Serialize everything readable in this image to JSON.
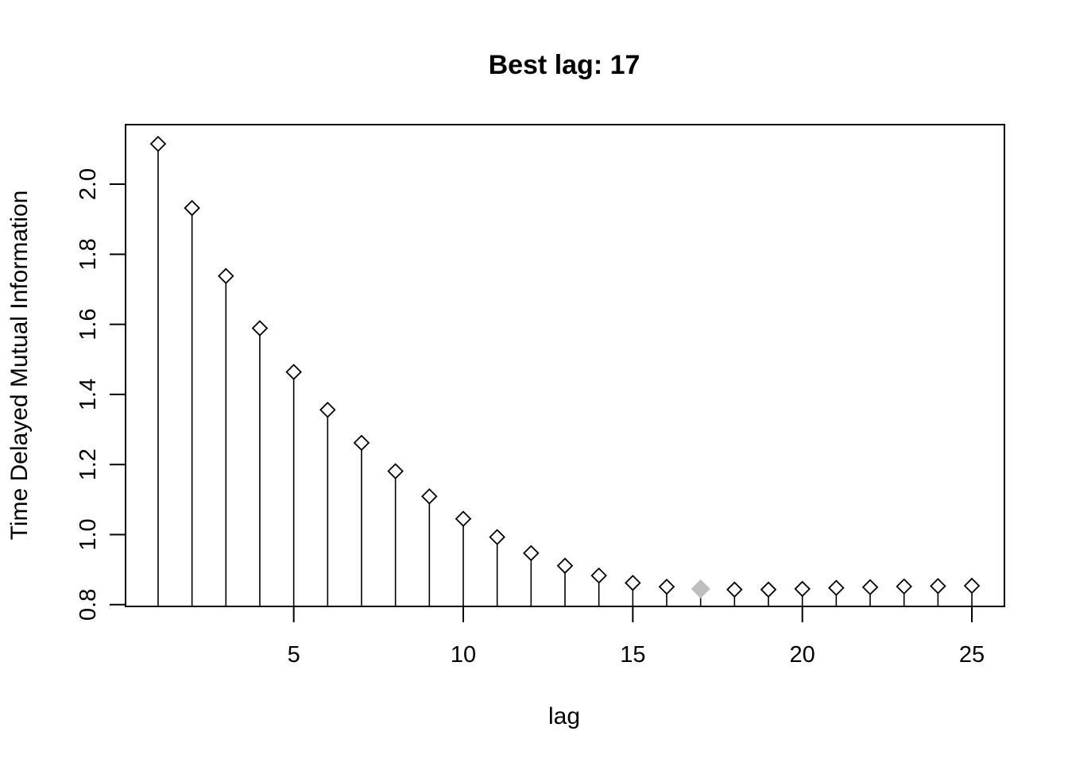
{
  "chart_data": {
    "type": "scatter",
    "title": "Best lag: 17",
    "xlabel": "lag",
    "ylabel": "Time Delayed Mutual Information",
    "xlim": [
      0.04,
      25.96
    ],
    "ylim": [
      0.795,
      2.17
    ],
    "x_ticks": [
      5,
      10,
      15,
      20,
      25
    ],
    "y_ticks": [
      0.8,
      1.0,
      1.2,
      1.4,
      1.6,
      1.8,
      2.0
    ],
    "x_tick_labels": [
      "5",
      "10",
      "15",
      "20",
      "25"
    ],
    "y_tick_labels": [
      "0.8",
      "1.0",
      "1.2",
      "1.4",
      "1.6",
      "1.8",
      "2.0"
    ],
    "grid": false,
    "marker": "open-diamond",
    "drop_lines": true,
    "highlight": {
      "x": 17,
      "color": "#bebebe",
      "marker": "filled-diamond"
    },
    "series": [
      {
        "x": [
          1,
          2,
          3,
          4,
          5,
          6,
          7,
          8,
          9,
          10,
          11,
          12,
          13,
          14,
          15,
          16,
          17,
          18,
          19,
          20,
          21,
          22,
          23,
          24,
          25
        ],
        "values": [
          2.115,
          1.932,
          1.738,
          1.589,
          1.464,
          1.356,
          1.262,
          1.181,
          1.109,
          1.045,
          0.993,
          0.947,
          0.911,
          0.883,
          0.862,
          0.851,
          0.845,
          0.843,
          0.843,
          0.845,
          0.848,
          0.85,
          0.852,
          0.853,
          0.854
        ]
      }
    ]
  }
}
